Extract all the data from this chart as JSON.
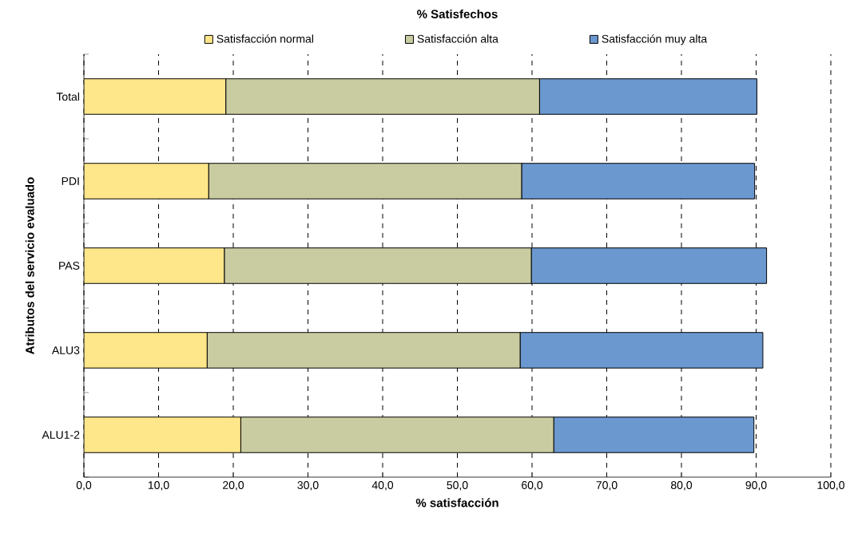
{
  "chart_data": {
    "type": "bar",
    "orientation": "horizontal",
    "stacked": true,
    "title": "% Satisfechos",
    "xlabel": "% satisfacción",
    "ylabel": "Atributos del servicio evaluado",
    "categories": [
      "Total",
      "PDI",
      "PAS",
      "ALU3",
      "ALU1-2"
    ],
    "series": [
      {
        "name": "Satisfacción normal",
        "color": "#fee68a",
        "values": [
          19.0,
          16.7,
          18.8,
          16.5,
          21.0
        ]
      },
      {
        "name": "Satisfacción alta",
        "color": "#c9cca1",
        "values": [
          42.0,
          41.9,
          41.1,
          41.9,
          41.9
        ]
      },
      {
        "name": "Satisfacción muy alta",
        "color": "#6b98cf",
        "values": [
          29.1,
          31.2,
          31.5,
          32.5,
          26.8
        ]
      }
    ],
    "xlim": [
      0,
      100
    ],
    "xticks": [
      {
        "value": 0,
        "label": "0,0"
      },
      {
        "value": 10,
        "label": "10,0"
      },
      {
        "value": 20,
        "label": "20,0"
      },
      {
        "value": 30,
        "label": "30,0"
      },
      {
        "value": 40,
        "label": "40,0"
      },
      {
        "value": 50,
        "label": "50,0"
      },
      {
        "value": 60,
        "label": "60,0"
      },
      {
        "value": 70,
        "label": "70,0"
      },
      {
        "value": 80,
        "label": "80,0"
      },
      {
        "value": 90,
        "label": "90,0"
      },
      {
        "value": 100,
        "label": "100,0"
      }
    ],
    "grid": "x",
    "legend": "top"
  }
}
